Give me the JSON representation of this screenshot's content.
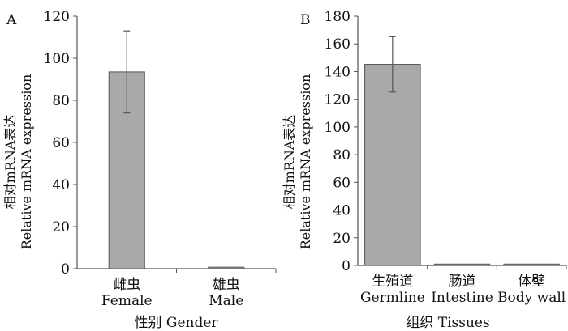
{
  "chart_data": [
    {
      "type": "bar",
      "panel_label": "A",
      "ylabel_cn": "相对mRNA表达",
      "ylabel_en": "Relative mRNA expression",
      "xlabel": "性别  Gender",
      "categories_cn": [
        "雌虫",
        "雄虫"
      ],
      "categories_en": [
        "Female",
        "Male"
      ],
      "values": [
        93.5,
        0.7
      ],
      "errors": [
        19.5,
        0.2
      ],
      "ylim": [
        0,
        120
      ],
      "yticks": [
        0,
        20,
        40,
        60,
        80,
        100,
        120
      ],
      "grid": false
    },
    {
      "type": "bar",
      "panel_label": "B",
      "ylabel_cn": "相对mRNA表达",
      "ylabel_en": "Relative mRNA expression",
      "xlabel": "组织  Tissues",
      "categories_cn": [
        "生殖道",
        "肠道",
        "体壁"
      ],
      "categories_en": [
        "Germline",
        "Intestine",
        "Body wall"
      ],
      "values": [
        145.2,
        1.0,
        1.0
      ],
      "errors": [
        20,
        0.2,
        0.2
      ],
      "ylim": [
        0,
        180
      ],
      "yticks": [
        0,
        20,
        40,
        60,
        80,
        100,
        120,
        140,
        160,
        180
      ],
      "grid": false
    }
  ],
  "colors": {
    "bar_fill": "#a9a9a9",
    "bar_stroke": "#555555",
    "axis": "#555555",
    "error_bar": "#555555"
  }
}
